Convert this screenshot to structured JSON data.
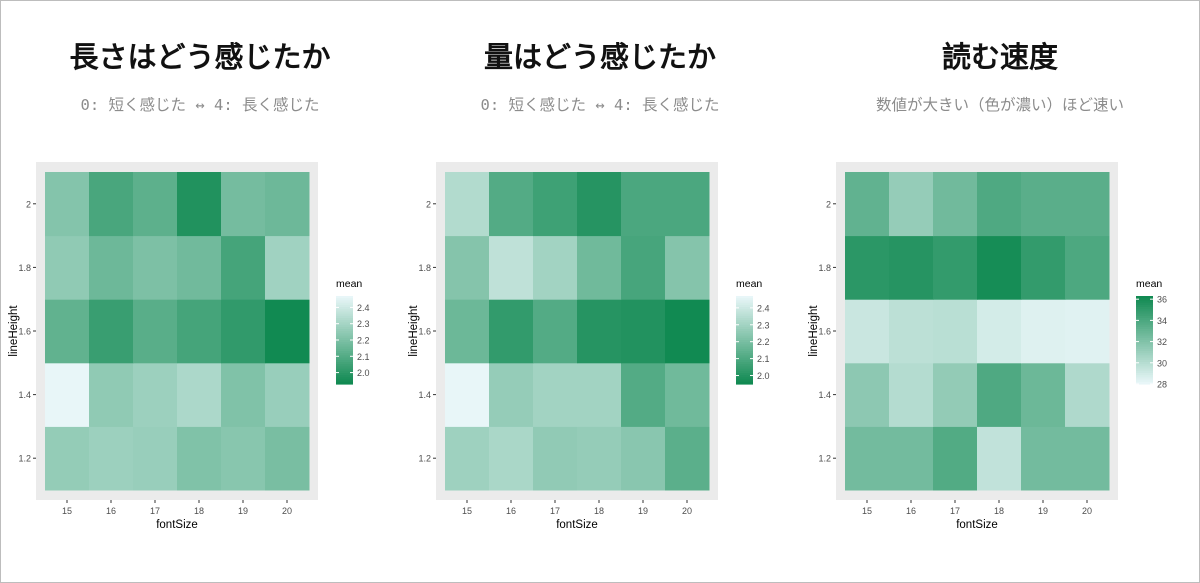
{
  "panels": [
    {
      "title": "長さはどう感じたか",
      "subtitle": "0: 短く感じた ↔ 4: 長く感じた"
    },
    {
      "title": "量はどう感じたか",
      "subtitle": "0: 短く感じた ↔ 4: 長く感じた"
    },
    {
      "title": "読む速度",
      "subtitle": "数値が大きい（色が濃い）ほど速い"
    }
  ],
  "chart_data": [
    {
      "type": "heatmap",
      "xlabel": "fontSize",
      "ylabel": "lineHeight",
      "x": [
        "15",
        "16",
        "17",
        "18",
        "19",
        "20"
      ],
      "y": [
        "1.2",
        "1.4",
        "1.6",
        "1.8",
        "2"
      ],
      "values": [
        [
          2.26,
          2.28,
          2.27,
          2.21,
          2.23,
          2.19
        ],
        [
          2.47,
          2.25,
          2.28,
          2.32,
          2.21,
          2.27
        ],
        [
          2.13,
          2.03,
          2.11,
          2.06,
          2.01,
          1.93
        ],
        [
          2.25,
          2.16,
          2.2,
          2.17,
          2.06,
          2.29
        ],
        [
          2.22,
          2.07,
          2.12,
          1.97,
          2.18,
          2.16
        ]
      ],
      "legend": {
        "title": "mean",
        "ticks": [
          "2.4",
          "2.3",
          "2.2",
          "2.1",
          "2.0"
        ],
        "min": 1.93,
        "max": 2.47,
        "reverse": true
      },
      "colors": {
        "light": "#e8f6f8",
        "dark": "#118a52"
      }
    },
    {
      "type": "heatmap",
      "xlabel": "fontSize",
      "ylabel": "lineHeight",
      "x": [
        "15",
        "16",
        "17",
        "18",
        "19",
        "20"
      ],
      "y": [
        "1.2",
        "1.4",
        "1.6",
        "1.8",
        "2"
      ],
      "values": [
        [
          2.29,
          2.32,
          2.26,
          2.27,
          2.24,
          2.13
        ],
        [
          2.47,
          2.27,
          2.3,
          2.3,
          2.11,
          2.18
        ],
        [
          2.17,
          2.03,
          2.11,
          2.0,
          1.99,
          1.95
        ],
        [
          2.23,
          2.37,
          2.3,
          2.18,
          2.08,
          2.23
        ],
        [
          2.34,
          2.11,
          2.06,
          2.0,
          2.09,
          2.09
        ]
      ],
      "legend": {
        "title": "mean",
        "ticks": [
          "2.4",
          "2.3",
          "2.2",
          "2.1",
          "2.0"
        ],
        "min": 1.95,
        "max": 2.47,
        "reverse": true
      },
      "colors": {
        "light": "#e8f6f8",
        "dark": "#118a52"
      }
    },
    {
      "type": "heatmap",
      "xlabel": "fontSize",
      "ylabel": "lineHeight",
      "x": [
        "15",
        "16",
        "17",
        "18",
        "19",
        "20"
      ],
      "y": [
        "1.2",
        "1.4",
        "1.6",
        "1.8",
        "2"
      ],
      "values": [
        [
          32.5,
          32.5,
          33.8,
          29.5,
          32.5,
          32.5
        ],
        [
          31.5,
          30.0,
          31.3,
          33.9,
          32.8,
          30.2
        ],
        [
          29.2,
          29.7,
          29.8,
          28.8,
          28.4,
          28.3
        ],
        [
          35.3,
          35.5,
          35.0,
          36.1,
          35.0,
          34.0
        ],
        [
          33.2,
          31.2,
          32.6,
          33.9,
          33.5,
          33.5
        ]
      ],
      "legend": {
        "title": "mean",
        "ticks": [
          "36",
          "34",
          "32",
          "30",
          "28"
        ],
        "min": 28,
        "max": 36.3,
        "reverse": false
      },
      "colors": {
        "light": "#e8f6f8",
        "dark": "#118a52"
      }
    }
  ]
}
